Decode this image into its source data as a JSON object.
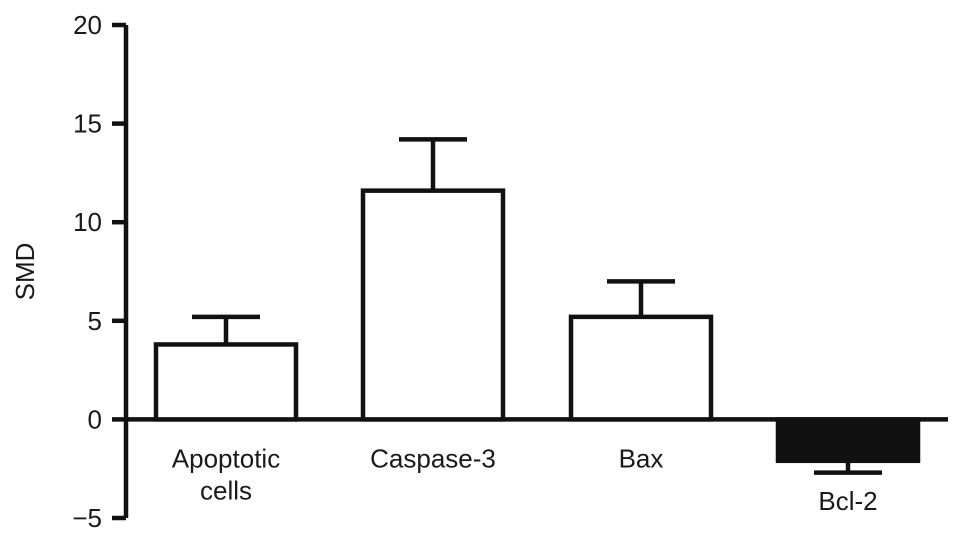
{
  "chart_data": {
    "type": "bar",
    "title": "",
    "xlabel": "",
    "ylabel": "SMD",
    "ylim": [
      -5,
      20
    ],
    "yticks": [
      "20",
      "15",
      "10",
      "5",
      "0",
      "−5"
    ],
    "ytick_values": [
      20,
      15,
      10,
      5,
      0,
      -5
    ],
    "categories": [
      [
        "Apoptotic",
        "cells"
      ],
      [
        "Caspase-3"
      ],
      [
        "Bax"
      ],
      [
        "Bcl-2"
      ]
    ],
    "values": [
      3.8,
      11.6,
      5.2,
      -2.1
    ],
    "error_bars": [
      1.4,
      2.6,
      1.8,
      0.6
    ],
    "bar_colors": [
      "#ffffff",
      "#ffffff",
      "#ffffff",
      "#111111"
    ],
    "grid": false,
    "legend": "none"
  }
}
